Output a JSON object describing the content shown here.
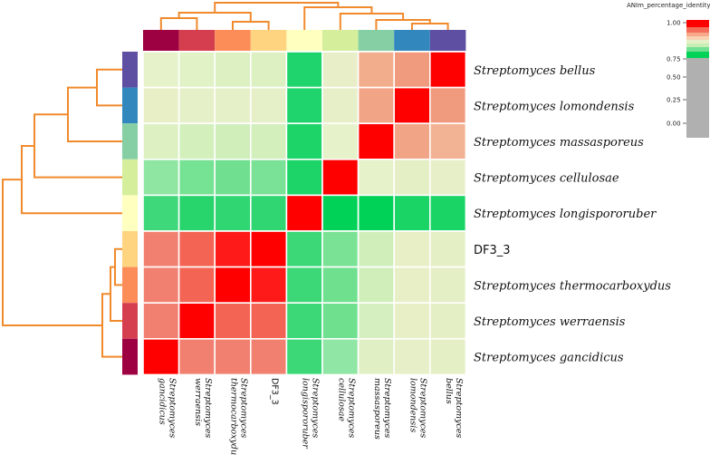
{
  "chart_data": {
    "type": "heatmap",
    "title": "",
    "colorbar_title": "ANIm_percentage_identity",
    "colorbar_ticks": [
      "1.00",
      "0.75",
      "0.50",
      "0.25",
      "0.00"
    ],
    "colorbar_tick_values": [
      1.0,
      0.75,
      0.5,
      0.25,
      0.0
    ],
    "row_labels": [
      {
        "text": "Streptomyces bellus",
        "italic": true
      },
      {
        "text": "Streptomyces lomondensis",
        "italic": true
      },
      {
        "text": "Streptomyces massasporeus",
        "italic": true
      },
      {
        "text": "Streptomyces cellulosae",
        "italic": true
      },
      {
        "text": "Streptomyces longispororuber",
        "italic": true
      },
      {
        "text": "DF3_3",
        "italic": false
      },
      {
        "text": "Streptomyces thermocarboxydus",
        "italic": true
      },
      {
        "text": "Streptomyces werraensis",
        "italic": true
      },
      {
        "text": "Streptomyces gancidicus",
        "italic": true
      }
    ],
    "col_labels": [
      {
        "lines": [
          "Streptomyces",
          "gancidicus"
        ],
        "italic": true
      },
      {
        "lines": [
          "Streptomyces",
          "werraensis"
        ],
        "italic": true
      },
      {
        "lines": [
          "Streptomyces",
          "thermocarboxydus"
        ],
        "italic": true
      },
      {
        "lines": [
          "DF3_3"
        ],
        "italic": false
      },
      {
        "lines": [
          "Streptomyces",
          "longispororuber"
        ],
        "italic": true
      },
      {
        "lines": [
          "Streptomyces",
          "cellulosae"
        ],
        "italic": true
      },
      {
        "lines": [
          "Streptomyces",
          "massasporeus"
        ],
        "italic": true
      },
      {
        "lines": [
          "Streptomyces",
          "lomondensis"
        ],
        "italic": true
      },
      {
        "lines": [
          "Streptomyces",
          "bellus"
        ],
        "italic": true
      }
    ],
    "cell_colors": [
      [
        "#e6f2c9",
        "#e0f2c6",
        "#dcf0c2",
        "#dcf0c2",
        "#1fd46c",
        "#e8efc8",
        "#f2ad8c",
        "#f09a7e",
        "#ff0000"
      ],
      [
        "#e8efc6",
        "#e6f0c8",
        "#e6f0c8",
        "#e6f0c8",
        "#1fd46c",
        "#e6efc8",
        "#f2a486",
        "#ff0000",
        "#f09a7e"
      ],
      [
        "#dcf0c2",
        "#d2efbc",
        "#cfeeba",
        "#d2efbc",
        "#1cd468",
        "#e6f2c9",
        "#ff0000",
        "#f2a486",
        "#f2b394"
      ],
      [
        "#8ee6a2",
        "#76e294",
        "#70e090",
        "#7ae296",
        "#1cd468",
        "#ff0000",
        "#e6f2c9",
        "#e4efc6",
        "#e6efc8"
      ],
      [
        "#3ed87a",
        "#28d46c",
        "#30d672",
        "#30d672",
        "#ff0000",
        "#00d258",
        "#00d258",
        "#1ad466",
        "#1ad466"
      ],
      [
        "#f28070",
        "#f46454",
        "#ff1a1a",
        "#ff0000",
        "#3cd878",
        "#7ae294",
        "#cfeeba",
        "#e8efc6",
        "#e4efc6"
      ],
      [
        "#f28070",
        "#f46454",
        "#ff0000",
        "#ff1a1a",
        "#3cd878",
        "#6ee08e",
        "#cfeeba",
        "#e8efc6",
        "#e4efc6"
      ],
      [
        "#f28070",
        "#ff0000",
        "#f46454",
        "#f46454",
        "#3cd878",
        "#6ee08e",
        "#d6efc0",
        "#e8efc6",
        "#e4efc6"
      ],
      [
        "#ff0000",
        "#f28070",
        "#f28070",
        "#f28070",
        "#3cd878",
        "#90e6a4",
        "#e0f0c4",
        "#e6efc8",
        "#e4efc6"
      ]
    ],
    "row_annotation_colors": [
      "#5e4fa2",
      "#3288bd",
      "#86cfa5",
      "#d5ee9b",
      "#ffffbf",
      "#fed481",
      "#fc8d59",
      "#d53e4f",
      "#9e0142"
    ],
    "col_annotation_colors": [
      "#9e0142",
      "#d53e4f",
      "#fc8d59",
      "#fed481",
      "#ffffbf",
      "#d5ee9b",
      "#86cfa5",
      "#3288bd",
      "#5e4fa2"
    ],
    "colorbar_stops": [
      "#ff0000",
      "#f46d5a",
      "#f7a98a",
      "#f9d2b2",
      "#e6f0c8",
      "#c8eeb4",
      "#72e092",
      "#00d258",
      "#b0b0b0"
    ],
    "dendrogram_color": "#f08a2c"
  }
}
